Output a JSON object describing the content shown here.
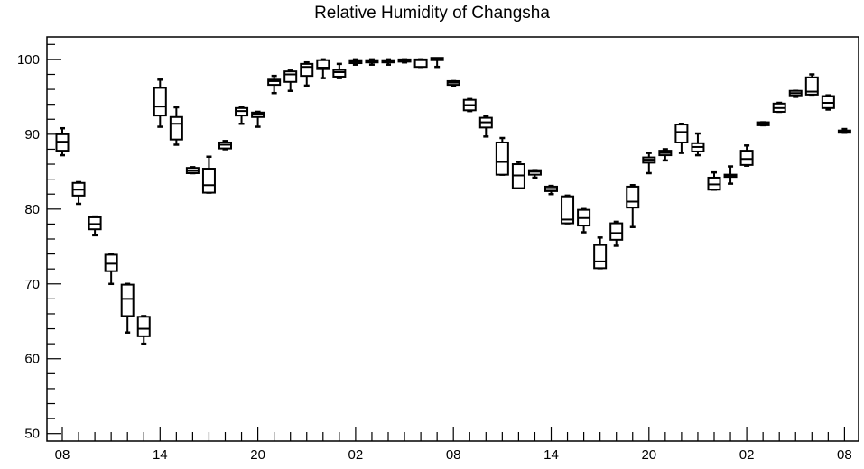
{
  "chart_data": {
    "type": "box",
    "title": "Relative Humidity of Changsha",
    "xlabel": "",
    "ylabel": "",
    "ylim": [
      49,
      103
    ],
    "y_ticks": [
      50,
      60,
      70,
      80,
      90,
      100
    ],
    "x_tick_labels": [
      "08",
      "14",
      "20",
      "02",
      "08",
      "14",
      "20",
      "02",
      "08"
    ],
    "x_tick_hours": [
      0,
      6,
      12,
      18,
      24,
      30,
      36,
      42,
      48
    ],
    "grid": false,
    "boxes": [
      {
        "t": 0,
        "min": 87.2,
        "q1": 87.8,
        "median": 89.0,
        "q3": 90.0,
        "max": 90.8
      },
      {
        "t": 1,
        "min": 80.7,
        "q1": 81.8,
        "median": 82.6,
        "q3": 83.5,
        "max": 83.6
      },
      {
        "t": 2,
        "min": 76.5,
        "q1": 77.3,
        "median": 78.0,
        "q3": 78.9,
        "max": 79.0
      },
      {
        "t": 3,
        "min": 70.0,
        "q1": 71.7,
        "median": 72.7,
        "q3": 73.9,
        "max": 74.0
      },
      {
        "t": 4,
        "min": 63.5,
        "q1": 65.7,
        "median": 68.0,
        "q3": 69.9,
        "max": 70.0
      },
      {
        "t": 5,
        "min": 62.0,
        "q1": 63.0,
        "median": 64.0,
        "q3": 65.6,
        "max": 65.7
      },
      {
        "t": 6,
        "min": 91.0,
        "q1": 92.5,
        "median": 93.7,
        "q3": 96.2,
        "max": 97.3
      },
      {
        "t": 7,
        "min": 88.6,
        "q1": 89.3,
        "median": 91.4,
        "q3": 92.3,
        "max": 93.6
      },
      {
        "t": 8,
        "min": 84.8,
        "q1": 84.8,
        "median": 85.1,
        "q3": 85.5,
        "max": 85.6
      },
      {
        "t": 9,
        "min": 82.2,
        "q1": 82.2,
        "median": 83.2,
        "q3": 85.4,
        "max": 87.0
      },
      {
        "t": 10,
        "min": 88.0,
        "q1": 88.1,
        "median": 88.6,
        "q3": 88.9,
        "max": 89.1
      },
      {
        "t": 11,
        "min": 91.4,
        "q1": 92.5,
        "median": 93.1,
        "q3": 93.5,
        "max": 93.6
      },
      {
        "t": 12,
        "min": 91.0,
        "q1": 92.3,
        "median": 92.7,
        "q3": 92.9,
        "max": 93.0
      },
      {
        "t": 13,
        "min": 95.5,
        "q1": 96.6,
        "median": 97.1,
        "q3": 97.3,
        "max": 97.8
      },
      {
        "t": 14,
        "min": 95.8,
        "q1": 97.0,
        "median": 98.0,
        "q3": 98.4,
        "max": 98.5
      },
      {
        "t": 15,
        "min": 96.5,
        "q1": 97.8,
        "median": 99.0,
        "q3": 99.4,
        "max": 99.6
      },
      {
        "t": 16,
        "min": 97.5,
        "q1": 98.7,
        "median": 98.9,
        "q3": 99.9,
        "max": 100.0
      },
      {
        "t": 17,
        "min": 97.5,
        "q1": 97.7,
        "median": 98.3,
        "q3": 98.6,
        "max": 99.4
      },
      {
        "t": 18,
        "min": 99.3,
        "q1": 99.5,
        "median": 99.7,
        "q3": 99.9,
        "max": 100.0
      },
      {
        "t": 19,
        "min": 99.3,
        "q1": 99.6,
        "median": 99.7,
        "q3": 99.9,
        "max": 100.0
      },
      {
        "t": 20,
        "min": 99.3,
        "q1": 99.6,
        "median": 99.8,
        "q3": 99.9,
        "max": 100.0
      },
      {
        "t": 21,
        "min": 99.6,
        "q1": 99.7,
        "median": 99.9,
        "q3": 100.0,
        "max": 100.0
      },
      {
        "t": 22,
        "min": 99.0,
        "q1": 99.0,
        "median": 99.9,
        "q3": 100.0,
        "max": 100.0
      },
      {
        "t": 23,
        "min": 99.0,
        "q1": 99.9,
        "median": 100.0,
        "q3": 100.0,
        "max": 100.0
      },
      {
        "t": 24,
        "min": 96.5,
        "q1": 96.6,
        "median": 96.9,
        "q3": 97.1,
        "max": 97.1
      },
      {
        "t": 25,
        "min": 93.1,
        "q1": 93.2,
        "median": 93.9,
        "q3": 94.6,
        "max": 94.7
      },
      {
        "t": 26,
        "min": 89.7,
        "q1": 90.9,
        "median": 91.6,
        "q3": 92.2,
        "max": 92.4
      },
      {
        "t": 27,
        "min": 84.6,
        "q1": 84.6,
        "median": 86.3,
        "q3": 88.9,
        "max": 89.5
      },
      {
        "t": 28,
        "min": 82.8,
        "q1": 82.8,
        "median": 84.5,
        "q3": 86.0,
        "max": 86.3
      },
      {
        "t": 29,
        "min": 84.2,
        "q1": 84.6,
        "median": 85.0,
        "q3": 85.2,
        "max": 85.2
      },
      {
        "t": 30,
        "min": 82.0,
        "q1": 82.4,
        "median": 82.7,
        "q3": 83.0,
        "max": 83.1
      },
      {
        "t": 31,
        "min": 78.1,
        "q1": 78.1,
        "median": 78.6,
        "q3": 81.7,
        "max": 81.8
      },
      {
        "t": 32,
        "min": 76.9,
        "q1": 77.8,
        "median": 78.8,
        "q3": 79.9,
        "max": 80.0
      },
      {
        "t": 33,
        "min": 72.1,
        "q1": 72.1,
        "median": 73.0,
        "q3": 75.2,
        "max": 76.2
      },
      {
        "t": 34,
        "min": 75.1,
        "q1": 75.9,
        "median": 76.8,
        "q3": 78.1,
        "max": 78.3
      },
      {
        "t": 35,
        "min": 77.6,
        "q1": 80.2,
        "median": 81.0,
        "q3": 83.0,
        "max": 83.2
      },
      {
        "t": 36,
        "min": 84.8,
        "q1": 86.2,
        "median": 86.6,
        "q3": 86.9,
        "max": 87.5
      },
      {
        "t": 37,
        "min": 86.5,
        "q1": 87.2,
        "median": 87.5,
        "q3": 87.8,
        "max": 88.0
      },
      {
        "t": 38,
        "min": 87.5,
        "q1": 88.9,
        "median": 90.3,
        "q3": 91.3,
        "max": 91.4
      },
      {
        "t": 39,
        "min": 87.2,
        "q1": 87.7,
        "median": 88.3,
        "q3": 88.8,
        "max": 90.1
      },
      {
        "t": 40,
        "min": 82.6,
        "q1": 82.6,
        "median": 83.3,
        "q3": 84.2,
        "max": 84.9
      },
      {
        "t": 41,
        "min": 83.4,
        "q1": 84.3,
        "median": 84.5,
        "q3": 84.6,
        "max": 85.7
      },
      {
        "t": 42,
        "min": 85.8,
        "q1": 85.9,
        "median": 86.7,
        "q3": 87.8,
        "max": 88.5
      },
      {
        "t": 43,
        "min": 91.2,
        "q1": 91.2,
        "median": 91.4,
        "q3": 91.6,
        "max": 91.6
      },
      {
        "t": 44,
        "min": 93.0,
        "q1": 93.0,
        "median": 93.5,
        "q3": 94.1,
        "max": 94.2
      },
      {
        "t": 45,
        "min": 95.0,
        "q1": 95.2,
        "median": 95.5,
        "q3": 95.8,
        "max": 95.8
      },
      {
        "t": 46,
        "min": 95.3,
        "q1": 95.3,
        "median": 95.7,
        "q3": 97.6,
        "max": 98.0
      },
      {
        "t": 47,
        "min": 93.3,
        "q1": 93.5,
        "median": 94.2,
        "q3": 95.1,
        "max": 95.2
      },
      {
        "t": 48,
        "min": 90.2,
        "q1": 90.2,
        "median": 90.3,
        "q3": 90.4,
        "max": 90.7
      }
    ]
  }
}
